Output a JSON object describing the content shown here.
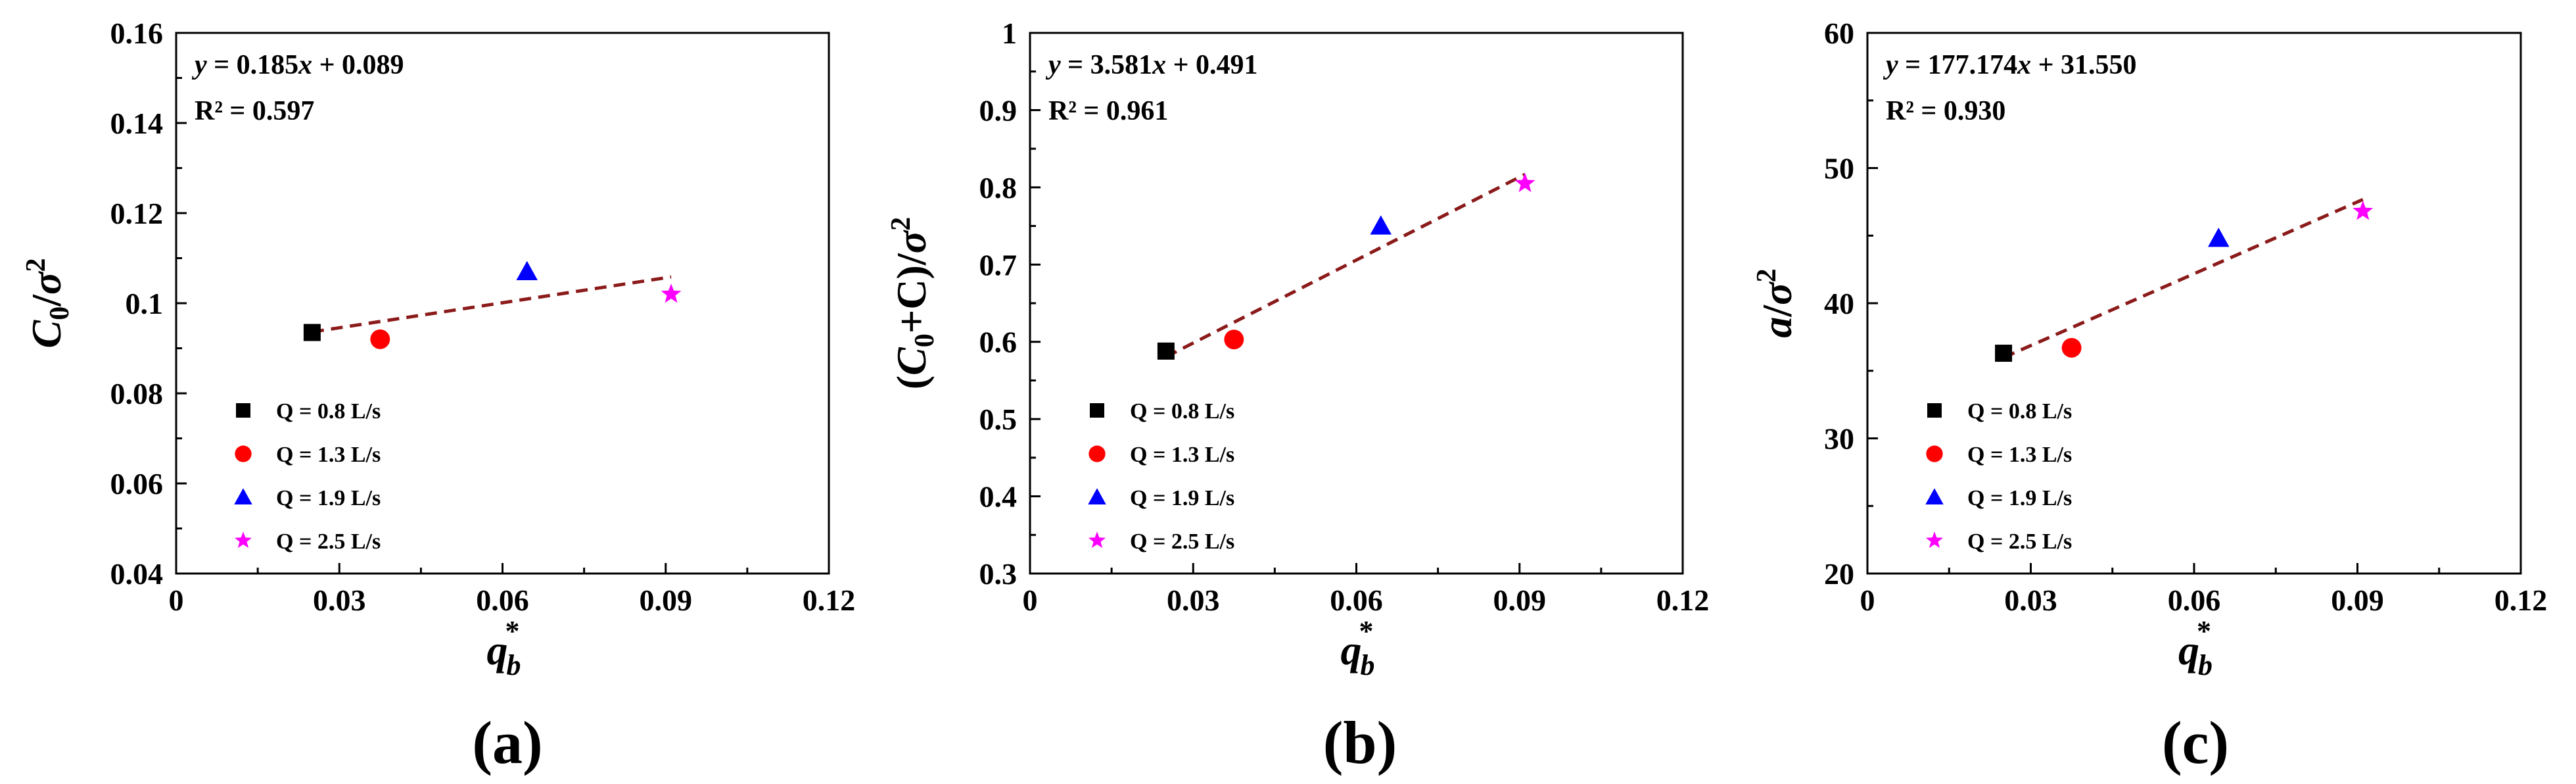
{
  "colors": {
    "series": [
      "#000000",
      "#ff0000",
      "#0000ff",
      "#ff00ff"
    ],
    "fit_line": "#8b1a1a",
    "axes": "#000000"
  },
  "chart_data": [
    {
      "type": "scatter",
      "panel_label": "(a)",
      "ylabel_html": "<tspan font-style='italic'>C</tspan><tspan font-size='42' dy='12'>0</tspan><tspan dy='-12'>/</tspan><tspan font-style='italic'>σ</tspan><tspan font-size='42' dy='-24'>2</tspan>",
      "xlabel": "q*b",
      "xlim": [
        0,
        0.12
      ],
      "xticks": [
        "0",
        "0.03",
        "0.06",
        "0.09",
        "0.12"
      ],
      "xtick_values": [
        0,
        0.03,
        0.06,
        0.09,
        0.12
      ],
      "ylim": [
        0.04,
        0.16
      ],
      "yticks": [
        "0.04",
        "0.06",
        "0.08",
        "0.1",
        "0.12",
        "0.14",
        "0.16"
      ],
      "ytick_values": [
        0.04,
        0.06,
        0.08,
        0.1,
        0.12,
        0.14,
        0.16
      ],
      "equation": "y = 0.185x + 0.089",
      "r2": "R² = 0.597",
      "fit": {
        "slope": 0.185,
        "intercept": 0.089,
        "x_range": [
          0.025,
          0.091
        ]
      },
      "series": [
        {
          "name": "Q = 0.8 L/s",
          "marker": "square",
          "x": 0.025,
          "y": 0.0935
        },
        {
          "name": "Q = 1.3 L/s",
          "marker": "circle",
          "x": 0.0375,
          "y": 0.092
        },
        {
          "name": "Q = 1.9 L/s",
          "marker": "triangle",
          "x": 0.0645,
          "y": 0.107
        },
        {
          "name": "Q = 2.5 L/s",
          "marker": "star",
          "x": 0.091,
          "y": 0.102
        }
      ]
    },
    {
      "type": "scatter",
      "panel_label": "(b)",
      "ylabel_html": "(<tspan font-style='italic'>C</tspan><tspan font-size='42' dy='12'>0</tspan><tspan dy='-12'>+C)/</tspan><tspan font-style='italic'>σ</tspan><tspan font-size='42' dy='-24'>2</tspan>",
      "xlabel": "q*b",
      "xlim": [
        0,
        0.12
      ],
      "xticks": [
        "0",
        "0.03",
        "0.06",
        "0.09",
        "0.12"
      ],
      "xtick_values": [
        0,
        0.03,
        0.06,
        0.09,
        0.12
      ],
      "ylim": [
        0.3,
        1.0
      ],
      "yticks": [
        "0.3",
        "0.4",
        "0.5",
        "0.6",
        "0.7",
        "0.8",
        "0.9",
        "1"
      ],
      "ytick_values": [
        0.3,
        0.4,
        0.5,
        0.6,
        0.7,
        0.8,
        0.9,
        1.0
      ],
      "equation": "y = 3.581x + 0.491",
      "r2": "R² = 0.961",
      "fit": {
        "slope": 3.581,
        "intercept": 0.491,
        "x_range": [
          0.025,
          0.091
        ]
      },
      "series": [
        {
          "name": "Q = 0.8 L/s",
          "marker": "square",
          "x": 0.025,
          "y": 0.588
        },
        {
          "name": "Q = 1.3 L/s",
          "marker": "circle",
          "x": 0.0375,
          "y": 0.603
        },
        {
          "name": "Q = 1.9 L/s",
          "marker": "triangle",
          "x": 0.0645,
          "y": 0.75
        },
        {
          "name": "Q = 2.5 L/s",
          "marker": "star",
          "x": 0.091,
          "y": 0.805
        }
      ]
    },
    {
      "type": "scatter",
      "panel_label": "(c)",
      "ylabel_html": "<tspan font-style='italic'>a</tspan>/<tspan font-style='italic'>σ</tspan><tspan font-size='42' dy='-24'>2</tspan>",
      "xlabel": "q*b",
      "xlim": [
        0,
        0.12
      ],
      "xticks": [
        "0",
        "0.03",
        "0.06",
        "0.09",
        "0.12"
      ],
      "xtick_values": [
        0,
        0.03,
        0.06,
        0.09,
        0.12
      ],
      "ylim": [
        20,
        60
      ],
      "yticks": [
        "20",
        "30",
        "40",
        "50",
        "60"
      ],
      "ytick_values": [
        20,
        30,
        40,
        50,
        60
      ],
      "equation": "y = 177.174x + 31.550",
      "r2": "R² = 0.930",
      "fit": {
        "slope": 177.174,
        "intercept": 31.55,
        "x_range": [
          0.025,
          0.091
        ]
      },
      "series": [
        {
          "name": "Q = 0.8 L/s",
          "marker": "square",
          "x": 0.025,
          "y": 36.3
        },
        {
          "name": "Q = 1.3 L/s",
          "marker": "circle",
          "x": 0.0375,
          "y": 36.7
        },
        {
          "name": "Q = 1.9 L/s",
          "marker": "triangle",
          "x": 0.0645,
          "y": 44.8
        },
        {
          "name": "Q = 2.5 L/s",
          "marker": "star",
          "x": 0.091,
          "y": 46.8
        }
      ]
    }
  ]
}
